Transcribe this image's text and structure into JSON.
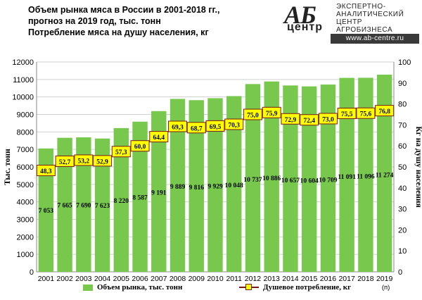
{
  "header": {
    "title_line1": "Объем рынка мяса в России в 2001-2018 гг.,",
    "title_line2": "прогноз на 2019 год, тыс. тонн",
    "title_line3": "Потребление мяса на душу населения, кг"
  },
  "logo": {
    "mark": "АБ",
    "mark_word": "центр",
    "line1": "ЭКСПЕРТНО-",
    "line2": "АНАЛИТИЧЕСКИЙ",
    "line3": "ЦЕНТР",
    "line4": "АГРОБИЗНЕСА",
    "url": "www.ab-centre.ru"
  },
  "legend": {
    "bar_label": "Объем рынка, тыс. тонн",
    "line_label": "Душевое потребление, кг"
  },
  "colors": {
    "bar": "#78c84e",
    "line": "#7a1a16",
    "marker": "#ffff00",
    "grid": "#d0d0d0"
  },
  "chart_data": {
    "type": "bar",
    "categories": [
      "2001",
      "2002",
      "2003",
      "2004",
      "2005",
      "2006",
      "2007",
      "2008",
      "2009",
      "2010",
      "2011",
      "2012",
      "2013",
      "2014",
      "2015",
      "2016",
      "2017",
      "2018",
      "2019"
    ],
    "forecast_note": "(п)",
    "series": [
      {
        "name": "Объем рынка, тыс. тонн",
        "type": "bar",
        "axis": "left",
        "values": [
          7053,
          7665,
          7690,
          7623,
          8220,
          8587,
          9191,
          9889,
          9816,
          9929,
          10048,
          10737,
          10886,
          10657,
          10604,
          10709,
          11091,
          11096,
          11274
        ],
        "labels": [
          "7 053",
          "7 665",
          "7 690",
          "7 623",
          "8 220",
          "8 587",
          "9 191",
          "9 889",
          "9 816",
          "9 929",
          "10 048",
          "10 737",
          "10 886",
          "10 657",
          "10 604",
          "10 709",
          "11 091",
          "11 096",
          "11 274"
        ]
      },
      {
        "name": "Душевое потребление, кг",
        "type": "line",
        "axis": "right",
        "values": [
          48.3,
          52.7,
          53.2,
          52.9,
          57.3,
          60.0,
          64.4,
          69.3,
          68.7,
          69.5,
          70.3,
          75.0,
          75.9,
          72.9,
          72.4,
          73.0,
          75.5,
          75.6,
          76.8
        ],
        "labels": [
          "48,3",
          "52,7",
          "53,2",
          "52,9",
          "57,3",
          "60,0",
          "64,4",
          "69,3",
          "68,7",
          "69,5",
          "70,3",
          "75,0",
          "75,9",
          "72,9",
          "72,4",
          "73,0",
          "75,5",
          "75,6",
          "76,8"
        ]
      }
    ],
    "ylabel_left": "Тыс. тонн",
    "ylabel_right": "Кг на душу населения",
    "ylim_left": [
      0,
      12000
    ],
    "ylim_right": [
      0,
      100
    ],
    "yticks_left": [
      "0",
      "1000",
      "2000",
      "3000",
      "4000",
      "5000",
      "6000",
      "7000",
      "8000",
      "9000",
      "10000",
      "11000",
      "12000"
    ],
    "yticks_right": [
      "0",
      "10",
      "20",
      "30",
      "40",
      "50",
      "60",
      "70",
      "80",
      "90",
      "100"
    ],
    "grid": true,
    "legend_position": "bottom"
  }
}
